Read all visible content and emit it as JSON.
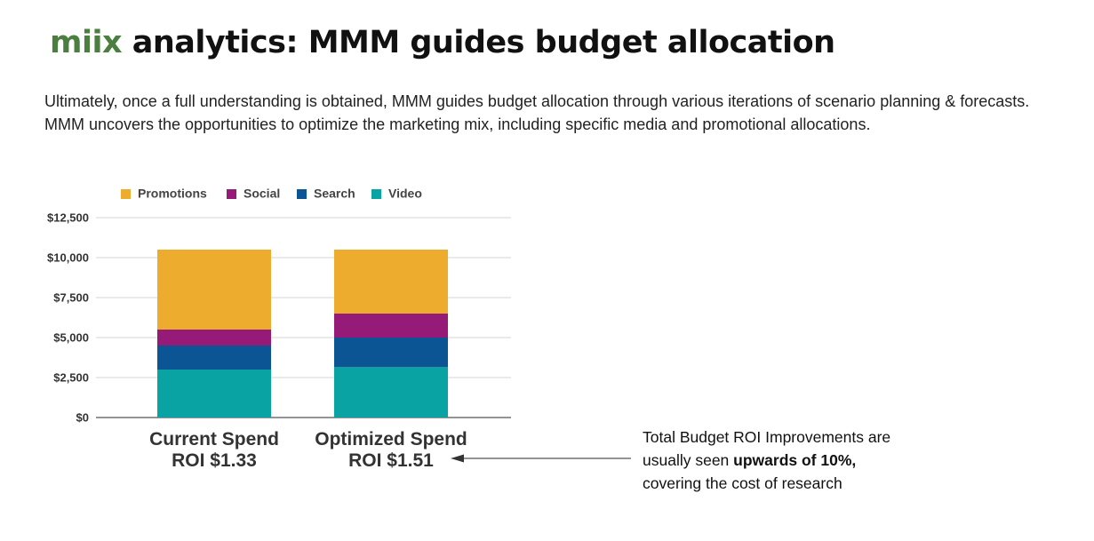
{
  "header": {
    "brand": "miix",
    "title": "analytics:  MMM guides budget allocation"
  },
  "intro": "Ultimately, once a full understanding is obtained, MMM guides budget allocation through various iterations of scenario planning & forecasts.  MMM uncovers the opportunities to optimize the marketing mix, including specific media and promotional allocations.",
  "note": {
    "line1": "Total Budget ROI Improvements are",
    "line2_prefix": "usually seen ",
    "line2_bold": "upwards of 10%,",
    "line3": "covering the cost of research"
  },
  "chart_data": {
    "type": "bar",
    "stacked": true,
    "categories": [
      "Current Spend",
      "Optimized Spend"
    ],
    "category_sublabels": [
      "ROI $1.33",
      "ROI $1.51"
    ],
    "series": [
      {
        "name": "Video",
        "color": "#0aa3a3",
        "values": [
          3000,
          3150
        ]
      },
      {
        "name": "Search",
        "color": "#0c5595",
        "values": [
          1500,
          1850
        ]
      },
      {
        "name": "Social",
        "color": "#961a77",
        "values": [
          1000,
          1500
        ]
      },
      {
        "name": "Promotions",
        "color": "#eeac2e",
        "values": [
          5000,
          4000
        ]
      }
    ],
    "legend_order": [
      "Promotions",
      "Social",
      "Search",
      "Video"
    ],
    "legend_position": "top",
    "ylim": [
      0,
      12500
    ],
    "yticks": [
      0,
      2500,
      5000,
      7500,
      10000,
      12500
    ],
    "ytick_labels": [
      "$0",
      "$2,500",
      "$5,000",
      "$7,500",
      "$10,000",
      "$12,500"
    ],
    "grid": true,
    "title": "",
    "xlabel": "",
    "ylabel": ""
  }
}
